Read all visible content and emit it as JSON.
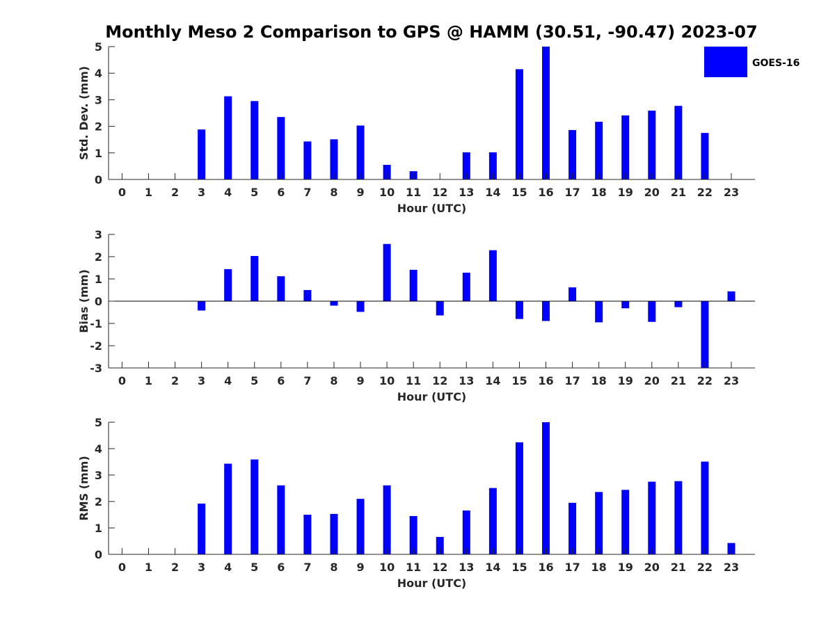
{
  "figure": {
    "title": "Monthly Meso 2 Comparison to GPS @ HAMM (30.51, -90.47) 2023-07",
    "bar_color": "#0000ff"
  },
  "legend": {
    "label": "GOES-16",
    "placement": "top-right",
    "color": "#0000ff"
  },
  "chart_data": [
    {
      "type": "bar",
      "name": "std-dev",
      "title": "Monthly Meso 2 Comparison to GPS @ HAMM (30.51, -90.47) 2023-07",
      "xlabel": "Hour (UTC)",
      "ylabel": "Std. Dev. (mm)",
      "ylim": [
        0,
        5
      ],
      "yticks": [
        0,
        1,
        2,
        3,
        4,
        5
      ],
      "categories": [
        "0",
        "1",
        "2",
        "3",
        "4",
        "5",
        "6",
        "7",
        "8",
        "9",
        "10",
        "11",
        "12",
        "13",
        "14",
        "15",
        "16",
        "17",
        "18",
        "19",
        "20",
        "21",
        "22",
        "23"
      ],
      "series": [
        {
          "name": "GOES-16",
          "values": [
            null,
            null,
            null,
            1.88,
            3.13,
            2.95,
            2.35,
            1.43,
            1.51,
            2.03,
            0.55,
            0.31,
            null,
            1.02,
            1.02,
            4.15,
            5.0,
            1.86,
            2.17,
            2.41,
            2.59,
            2.77,
            1.75,
            null
          ]
        }
      ],
      "grid": false
    },
    {
      "type": "bar",
      "name": "bias",
      "xlabel": "Hour (UTC)",
      "ylabel": "Bias (mm)",
      "ylim": [
        -3,
        3
      ],
      "yticks": [
        -3,
        -2,
        -1,
        0,
        1,
        2,
        3
      ],
      "categories": [
        "0",
        "1",
        "2",
        "3",
        "4",
        "5",
        "6",
        "7",
        "8",
        "9",
        "10",
        "11",
        "12",
        "13",
        "14",
        "15",
        "16",
        "17",
        "18",
        "19",
        "20",
        "21",
        "22",
        "23"
      ],
      "series": [
        {
          "name": "GOES-16",
          "values": [
            null,
            null,
            null,
            -0.42,
            1.44,
            2.03,
            1.12,
            0.5,
            -0.2,
            -0.48,
            2.57,
            1.41,
            -0.64,
            1.28,
            2.29,
            -0.8,
            -0.89,
            0.62,
            -0.95,
            -0.32,
            -0.93,
            -0.27,
            -3.0,
            0.44
          ]
        }
      ],
      "grid": false
    },
    {
      "type": "bar",
      "name": "rms",
      "xlabel": "Hour (UTC)",
      "ylabel": "RMS (mm)",
      "ylim": [
        0,
        5
      ],
      "yticks": [
        0,
        1,
        2,
        3,
        4,
        5
      ],
      "categories": [
        "0",
        "1",
        "2",
        "3",
        "4",
        "5",
        "6",
        "7",
        "8",
        "9",
        "10",
        "11",
        "12",
        "13",
        "14",
        "15",
        "16",
        "17",
        "18",
        "19",
        "20",
        "21",
        "22",
        "23"
      ],
      "series": [
        {
          "name": "GOES-16",
          "values": [
            null,
            null,
            null,
            1.92,
            3.43,
            3.59,
            2.61,
            1.5,
            1.53,
            2.1,
            2.61,
            1.45,
            0.66,
            1.66,
            2.51,
            4.24,
            5.0,
            1.95,
            2.36,
            2.44,
            2.75,
            2.77,
            3.51,
            0.43
          ]
        }
      ],
      "grid": false
    }
  ]
}
